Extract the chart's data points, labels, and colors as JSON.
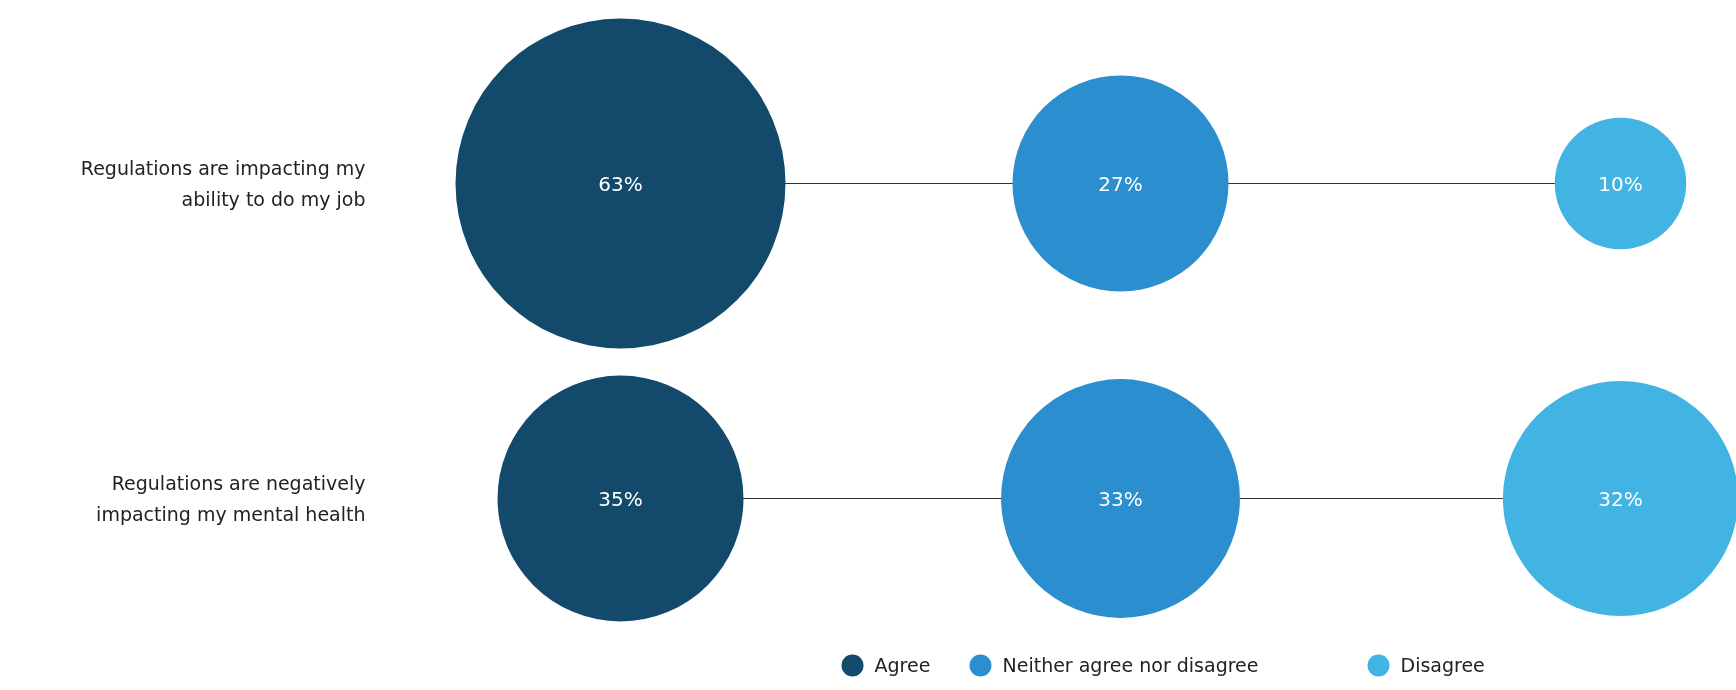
{
  "chart_data": {
    "type": "other",
    "categories": [
      "Regulations are impacting my\nability to do my job",
      "Regulations are negatively\nimpacting my mental health"
    ],
    "series": [
      {
        "name": "Agree",
        "color": "#134a6b",
        "values": [
          63,
          35
        ],
        "value_labels": [
          "63%",
          "35%"
        ]
      },
      {
        "name": "Neither agree nor disagree",
        "color": "#2a8ecf",
        "values": [
          27,
          33
        ],
        "value_labels": [
          "27%",
          "33%"
        ]
      },
      {
        "name": "Disagree",
        "color": "#41b4e3",
        "values": [
          10,
          32
        ],
        "value_labels": [
          "10%",
          "32%"
        ]
      }
    ],
    "legend": "bottom"
  }
}
